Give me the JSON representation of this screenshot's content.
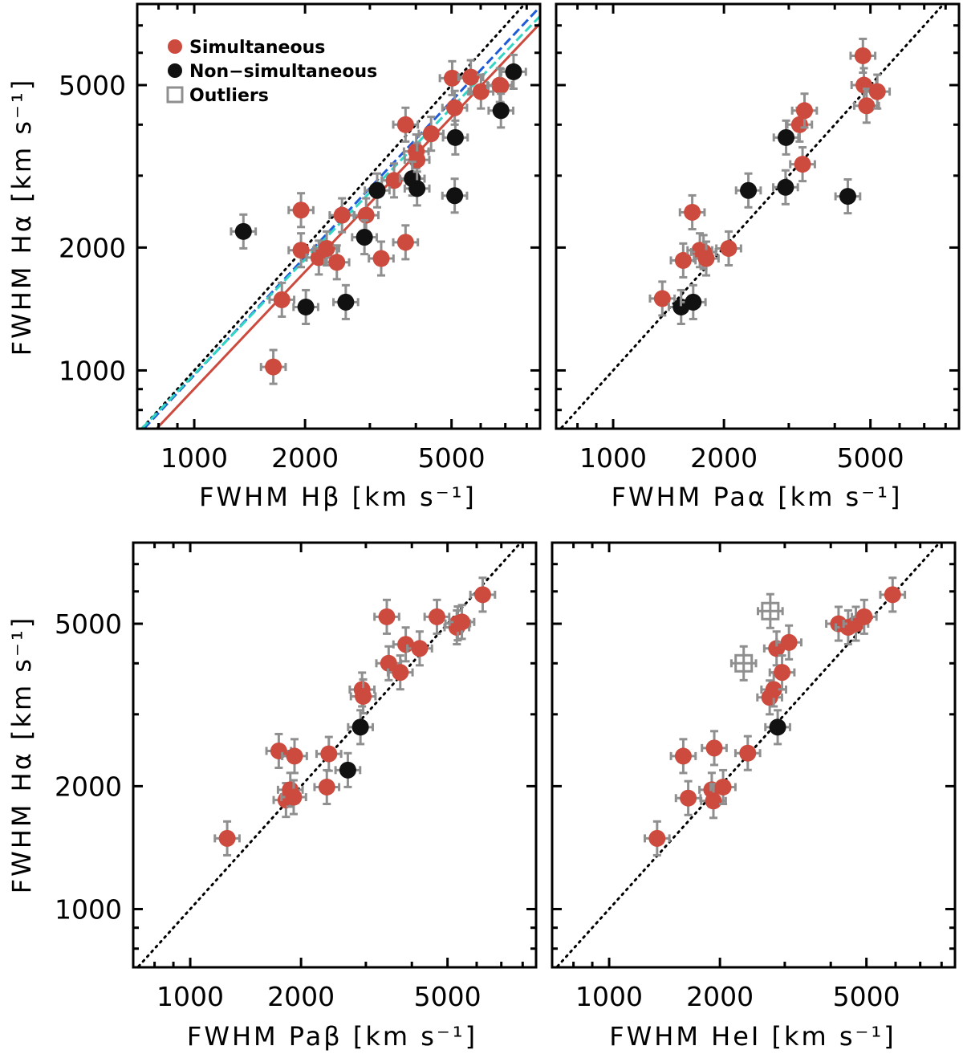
{
  "colors": {
    "simultaneous": "#cc4b3e",
    "non_simultaneous": "#111111",
    "outlier": "#8f8f8f",
    "error_bar": "#8f8f8f",
    "fit_red": "#cc4b3e",
    "fit_blue": "#1e5bd8",
    "fit_cyan": "#33d6c4"
  },
  "chart_data": [
    {
      "type": "scatter",
      "log_scale": true,
      "xlim": [
        700,
        8700
      ],
      "ylim": [
        720,
        7900
      ],
      "x_ticks": [
        1000,
        2000,
        5000
      ],
      "y_ticks": [
        1000,
        2000,
        5000
      ],
      "x_tick_labels": [
        "1000",
        "2000",
        "5000"
      ],
      "y_tick_labels": [
        "1000",
        "2000",
        "5000"
      ],
      "xlabel": "FWHM Hβ [km s⁻¹]",
      "ylabel": "FWHM Hα [km s⁻¹]",
      "legend": {
        "placement": "top-left",
        "entries": [
          {
            "label": "Simultaneous",
            "marker": "filled-circle",
            "color": "#cc4b3e"
          },
          {
            "label": "Non−simultaneous",
            "marker": "filled-circle",
            "color": "#111111"
          },
          {
            "label": "Outliers",
            "marker": "open-square",
            "color": "#8f8f8f"
          }
        ]
      },
      "one_to_one_line": true,
      "fit_lines": [
        {
          "style": "solid",
          "color": "#cc4b3e",
          "x": [
            790,
            8700
          ],
          "y": [
            720,
            7080
          ]
        },
        {
          "style": "dashed",
          "color": "#1e5bd8",
          "x": [
            730,
            8700
          ],
          "y": [
            720,
            7780
          ]
        },
        {
          "style": "dashed",
          "color": "#33d6c4",
          "x": [
            720,
            8700
          ],
          "y": [
            720,
            7380
          ]
        }
      ],
      "series": [
        {
          "name": "Simultaneous",
          "color": "#cc4b3e",
          "points": [
            [
              1640,
              1020
            ],
            [
              1730,
              1490
            ],
            [
              1950,
              1970
            ],
            [
              1950,
              2470
            ],
            [
              2180,
              1890
            ],
            [
              2290,
              1990
            ],
            [
              2440,
              1840
            ],
            [
              2520,
              2400
            ],
            [
              2930,
              2400
            ],
            [
              3220,
              1880
            ],
            [
              3490,
              2920
            ],
            [
              3750,
              2060
            ],
            [
              3750,
              4000
            ],
            [
              4010,
              3440
            ],
            [
              4030,
              3280
            ],
            [
              4400,
              3800
            ],
            [
              5020,
              5200
            ],
            [
              5100,
              4400
            ],
            [
              5640,
              5230
            ],
            [
              6010,
              4820
            ],
            [
              6760,
              5000
            ],
            [
              6800,
              4980
            ]
          ]
        },
        {
          "name": "Non−simultaneous",
          "color": "#111111",
          "points": [
            [
              1360,
              2190
            ],
            [
              2010,
              1430
            ],
            [
              2580,
              1470
            ],
            [
              2900,
              2120
            ],
            [
              3140,
              2760
            ],
            [
              3910,
              2950
            ],
            [
              4030,
              2790
            ],
            [
              5100,
              2680
            ],
            [
              5120,
              3720
            ],
            [
              6810,
              4330
            ],
            [
              7370,
              5390
            ]
          ]
        }
      ]
    },
    {
      "type": "scatter",
      "log_scale": true,
      "xlim": [
        700,
        8700
      ],
      "ylim": [
        720,
        7900
      ],
      "x_ticks": [
        1000,
        2000,
        5000
      ],
      "y_ticks": [
        1000,
        2000,
        5000
      ],
      "x_tick_labels": [
        "1000",
        "2000",
        "5000"
      ],
      "y_tick_labels": [
        "",
        "",
        ""
      ],
      "xlabel": "FWHM Paα [km s⁻¹]",
      "ylabel": "",
      "one_to_one_line": true,
      "series": [
        {
          "name": "Simultaneous",
          "color": "#cc4b3e",
          "points": [
            [
              1360,
              1500
            ],
            [
              1550,
              1860
            ],
            [
              1640,
              2440
            ],
            [
              1720,
              1970
            ],
            [
              1760,
              1950
            ],
            [
              1790,
              1880
            ],
            [
              2060,
              1990
            ],
            [
              3210,
              4000
            ],
            [
              3270,
              3200
            ],
            [
              3310,
              4330
            ],
            [
              4770,
              5900
            ],
            [
              4800,
              5000
            ],
            [
              4880,
              4450
            ],
            [
              5220,
              4820
            ]
          ]
        },
        {
          "name": "Non−simultaneous",
          "color": "#111111",
          "points": [
            [
              1530,
              1430
            ],
            [
              1650,
              1470
            ],
            [
              2330,
              2760
            ],
            [
              2940,
              2810
            ],
            [
              2950,
              3720
            ],
            [
              4340,
              2670
            ]
          ]
        }
      ]
    },
    {
      "type": "scatter",
      "log_scale": true,
      "xlim": [
        700,
        8700
      ],
      "ylim": [
        720,
        7900
      ],
      "x_ticks": [
        1000,
        2000,
        5000
      ],
      "y_ticks": [
        1000,
        2000,
        5000
      ],
      "x_tick_labels": [
        "1000",
        "2000",
        "5000"
      ],
      "y_tick_labels": [
        "1000",
        "2000",
        "5000"
      ],
      "xlabel": "FWHM Paβ [km s⁻¹]",
      "ylabel": "FWHM Hα [km s⁻¹]",
      "one_to_one_line": true,
      "series": [
        {
          "name": "Simultaneous",
          "color": "#cc4b3e",
          "points": [
            [
              1260,
              1490
            ],
            [
              1740,
              2440
            ],
            [
              1820,
              1850
            ],
            [
              1870,
              1960
            ],
            [
              1910,
              1880
            ],
            [
              1920,
              2370
            ],
            [
              2350,
              1990
            ],
            [
              2380,
              2400
            ],
            [
              2930,
              3450
            ],
            [
              2950,
              3320
            ],
            [
              3420,
              5200
            ],
            [
              3460,
              4000
            ],
            [
              3720,
              3800
            ],
            [
              3850,
              4450
            ],
            [
              4200,
              4350
            ],
            [
              4680,
              5200
            ],
            [
              5300,
              4900
            ],
            [
              5330,
              5010
            ],
            [
              5470,
              5050
            ],
            [
              6230,
              5890
            ]
          ]
        },
        {
          "name": "Non−simultaneous",
          "color": "#111111",
          "points": [
            [
              2680,
              2190
            ],
            [
              2900,
              2790
            ]
          ]
        }
      ]
    },
    {
      "type": "scatter",
      "log_scale": true,
      "xlim": [
        700,
        8700
      ],
      "ylim": [
        720,
        7900
      ],
      "x_ticks": [
        1000,
        2000,
        5000
      ],
      "y_ticks": [
        1000,
        2000,
        5000
      ],
      "x_tick_labels": [
        "1000",
        "2000",
        "5000"
      ],
      "y_tick_labels": [
        "",
        "",
        ""
      ],
      "xlabel": "FWHM HeI [km s⁻¹]",
      "ylabel": "",
      "one_to_one_line": true,
      "series": [
        {
          "name": "Simultaneous",
          "color": "#cc4b3e",
          "points": [
            [
              1350,
              1490
            ],
            [
              1590,
              2370
            ],
            [
              1640,
              1870
            ],
            [
              1900,
              1960
            ],
            [
              1920,
              1840
            ],
            [
              1930,
              2480
            ],
            [
              2040,
              1990
            ],
            [
              2380,
              2410
            ],
            [
              2730,
              3300
            ],
            [
              2800,
              3450
            ],
            [
              2850,
              4350
            ],
            [
              2950,
              3800
            ],
            [
              3080,
              4500
            ],
            [
              4200,
              5000
            ],
            [
              4460,
              4900
            ],
            [
              4680,
              5000
            ],
            [
              4930,
              5200
            ],
            [
              5890,
              5890
            ]
          ]
        },
        {
          "name": "Non−simultaneous",
          "color": "#111111",
          "points": [
            [
              2870,
              2790
            ]
          ]
        },
        {
          "name": "Outliers",
          "color": "#8f8f8f",
          "marker": "open-square",
          "points": [
            [
              2320,
              4000
            ],
            [
              2740,
              5370
            ]
          ]
        }
      ]
    }
  ]
}
